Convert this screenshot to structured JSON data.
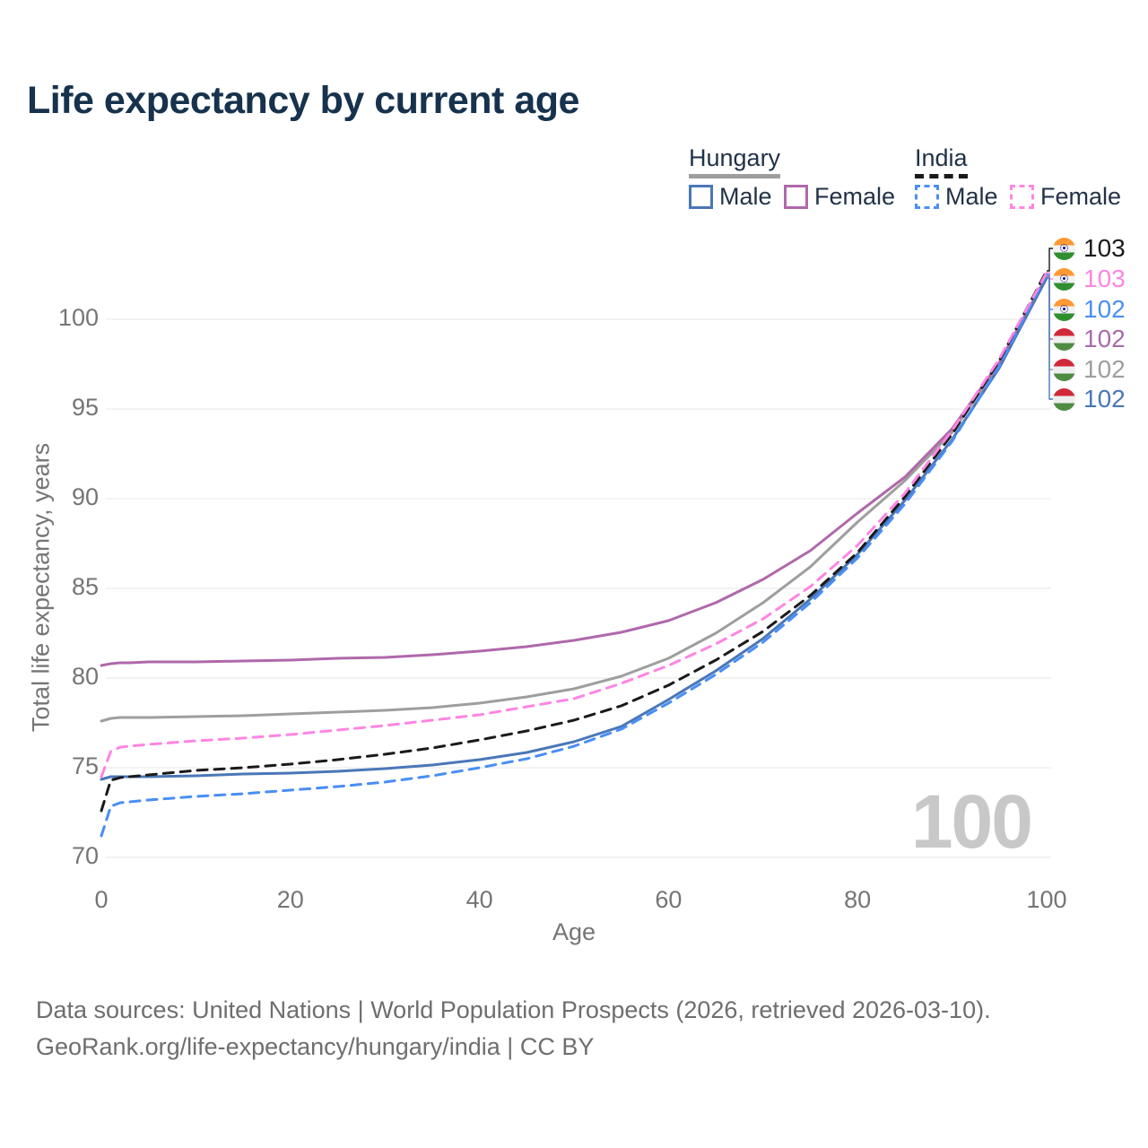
{
  "title": "Life expectancy by current age",
  "legend": {
    "groups": [
      {
        "country": "Hungary",
        "underline": "solid-gray",
        "items": [
          {
            "label": "Male",
            "color": "#4a77b8",
            "dash": false
          },
          {
            "label": "Female",
            "color": "#b068ab",
            "dash": false
          }
        ]
      },
      {
        "country": "India",
        "underline": "dashed-black",
        "items": [
          {
            "label": "Male",
            "color": "#4a8ef5",
            "dash": true
          },
          {
            "label": "Female",
            "color": "#ff85e2",
            "dash": true
          }
        ]
      }
    ]
  },
  "watermark": "100",
  "footer": {
    "line1": "Data sources: United Nations | World Population Prospects (2026, retrieved 2026-03-10).",
    "line2": "GeoRank.org/life-expectancy/hungary/india | CC BY"
  },
  "chart_data": {
    "type": "line",
    "title": "Life expectancy by current age",
    "xlabel": "Age",
    "ylabel": "Total life expectancy, years",
    "xlim": [
      0,
      100
    ],
    "ylim": [
      70,
      103
    ],
    "x_ticks": [
      0,
      20,
      40,
      60,
      80,
      100
    ],
    "y_ticks": [
      70,
      75,
      80,
      85,
      90,
      95,
      100
    ],
    "grid": "horizontal",
    "legend_position": "top-right",
    "x": [
      0,
      1,
      2,
      3,
      5,
      10,
      15,
      20,
      25,
      30,
      35,
      40,
      45,
      50,
      55,
      60,
      65,
      70,
      75,
      80,
      85,
      90,
      95,
      100
    ],
    "series": [
      {
        "name": "Hungary Total",
        "country": "Hungary",
        "sex": "Total",
        "color": "#9e9e9e",
        "dash": "solid",
        "values": [
          77.6,
          77.75,
          77.8,
          77.8,
          77.8,
          77.85,
          77.9,
          78.0,
          78.1,
          78.2,
          78.35,
          78.6,
          78.95,
          79.4,
          80.1,
          81.1,
          82.5,
          84.2,
          86.2,
          88.7,
          91.0,
          93.7,
          97.5,
          102.35
        ]
      },
      {
        "name": "Hungary Female",
        "country": "Hungary",
        "sex": "Female",
        "color": "#b068ab",
        "dash": "solid",
        "values": [
          80.7,
          80.8,
          80.85,
          80.85,
          80.9,
          80.9,
          80.95,
          81.0,
          81.1,
          81.15,
          81.3,
          81.5,
          81.75,
          82.1,
          82.55,
          83.2,
          84.2,
          85.5,
          87.1,
          89.2,
          91.2,
          93.9,
          97.6,
          102.4
        ]
      },
      {
        "name": "Hungary Male",
        "country": "Hungary",
        "sex": "Male",
        "color": "#4a77b8",
        "dash": "solid",
        "values": [
          74.35,
          74.5,
          74.5,
          74.5,
          74.5,
          74.55,
          74.65,
          74.7,
          74.8,
          74.95,
          75.15,
          75.45,
          75.85,
          76.45,
          77.3,
          78.8,
          80.4,
          82.2,
          84.4,
          86.9,
          89.9,
          93.3,
          97.3,
          102.3
        ]
      },
      {
        "name": "India Male",
        "country": "India",
        "sex": "Male",
        "color": "#4a8ef5",
        "dash": "dashed",
        "values": [
          71.2,
          72.85,
          73.05,
          73.1,
          73.2,
          73.4,
          73.55,
          73.75,
          73.95,
          74.2,
          74.55,
          75.0,
          75.5,
          76.2,
          77.15,
          78.6,
          80.2,
          82.0,
          84.2,
          86.7,
          89.7,
          93.2,
          97.4,
          102.5
        ]
      },
      {
        "name": "India Total",
        "country": "India",
        "sex": "Total",
        "color": "#1a1a1a",
        "dash": "dashed",
        "values": [
          72.6,
          74.3,
          74.45,
          74.5,
          74.6,
          74.85,
          75.0,
          75.2,
          75.45,
          75.75,
          76.1,
          76.55,
          77.05,
          77.65,
          78.45,
          79.6,
          81.0,
          82.6,
          84.6,
          87.0,
          90.1,
          93.6,
          97.7,
          102.7
        ]
      },
      {
        "name": "India Female",
        "country": "India",
        "sex": "Female",
        "color": "#ff85e2",
        "dash": "dashed",
        "values": [
          74.5,
          75.9,
          76.15,
          76.2,
          76.3,
          76.5,
          76.65,
          76.85,
          77.1,
          77.35,
          77.65,
          77.95,
          78.4,
          78.85,
          79.7,
          80.7,
          81.9,
          83.3,
          85.1,
          87.4,
          90.3,
          93.8,
          97.8,
          102.6
        ]
      }
    ],
    "end_labels": [
      {
        "value": "103",
        "series": "India Total",
        "flag": "india",
        "color": "#1a1a1a"
      },
      {
        "value": "103",
        "series": "India Female",
        "flag": "india",
        "color": "#ff85e2"
      },
      {
        "value": "102",
        "series": "India Male",
        "flag": "india",
        "color": "#4a8ef5"
      },
      {
        "value": "102",
        "series": "Hungary Female",
        "flag": "hungary",
        "color": "#a86cab"
      },
      {
        "value": "102",
        "series": "Hungary Total",
        "flag": "hungary",
        "color": "#9e9e9e"
      },
      {
        "value": "102",
        "series": "Hungary Male",
        "flag": "hungary",
        "color": "#4a77b8"
      }
    ]
  }
}
